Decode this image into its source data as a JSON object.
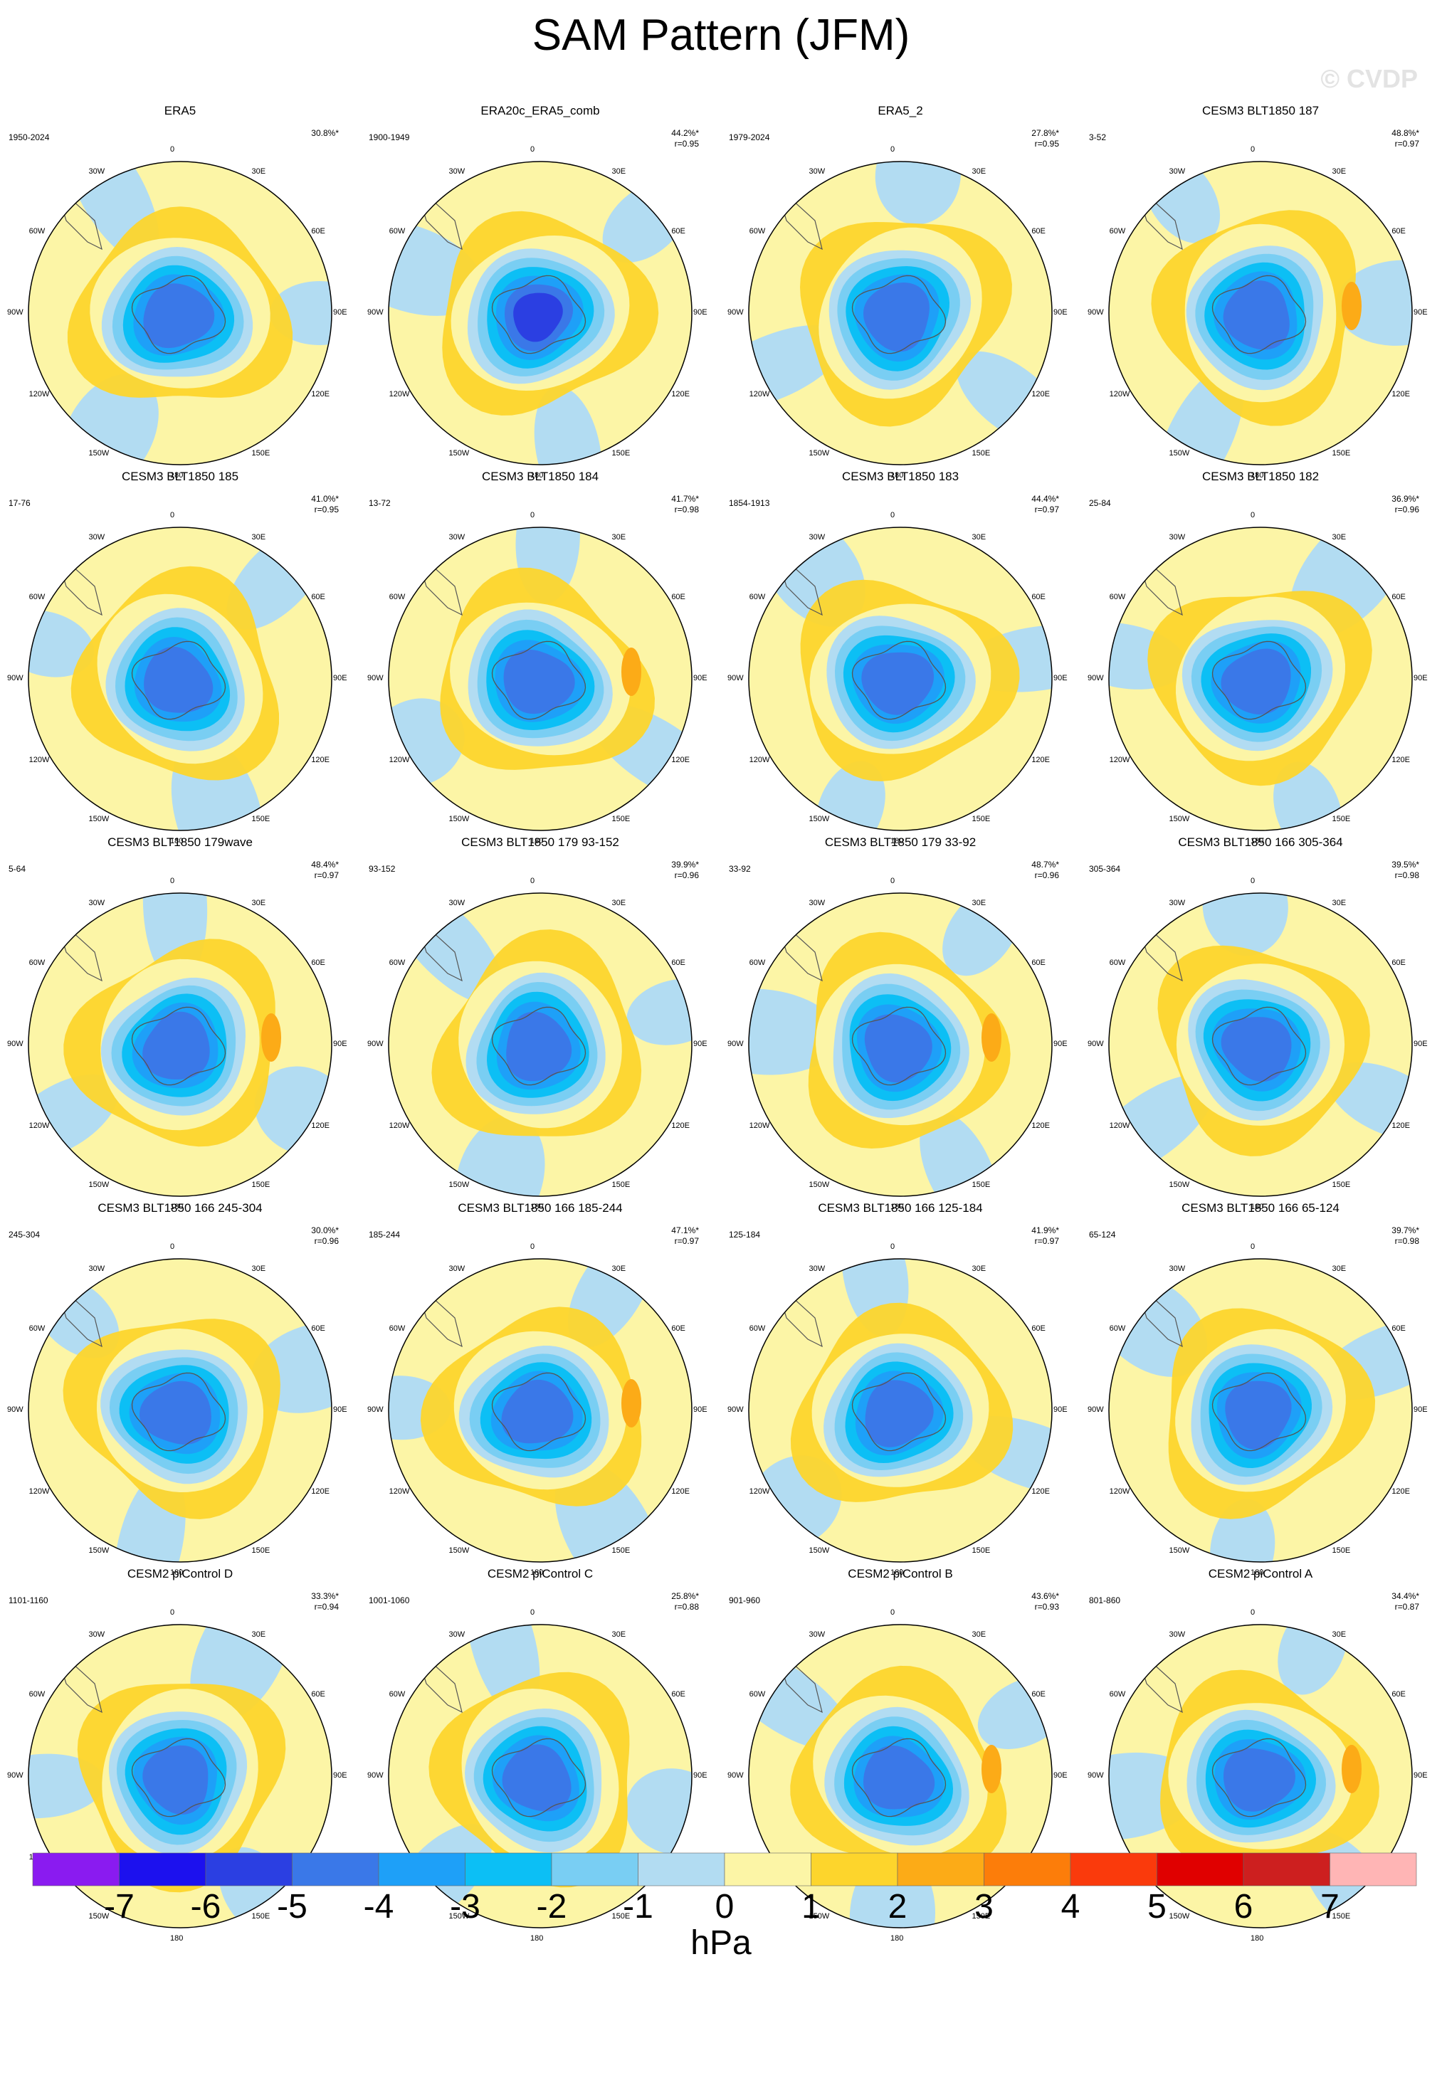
{
  "title": "SAM Pattern (JFM)",
  "watermark": "© CVDP",
  "lon_labels": [
    "0",
    "30E",
    "60E",
    "90E",
    "120E",
    "150E",
    "180",
    "150W",
    "120W",
    "90W",
    "60W",
    "30W"
  ],
  "colors": {
    "-8": "#8a1bf0",
    "-7": "#1c11ee",
    "-6": "#2b3fe2",
    "-5": "#3a78e8",
    "-4": "#1ea0f8",
    "-3": "#0cbff5",
    "-2": "#79cef3",
    "-1": "#b2dcf2",
    "0": "#fcf5a6",
    "1": "#fdd52c",
    "2": "#fcab17",
    "3": "#fc7d0a",
    "4": "#fa3a0c",
    "5": "#e00000",
    "6": "#cd1f1f",
    "7": "#ffb5b5"
  },
  "chart_data": {
    "type": "contour-map",
    "projection": "south polar stereographic",
    "colorbar": {
      "unit": "hPa",
      "ticks": [
        "-7",
        "-6",
        "-5",
        "-4",
        "-3",
        "-2",
        "-1",
        "0",
        "1",
        "2",
        "3",
        "4",
        "5",
        "6",
        "7"
      ]
    },
    "panels": [
      {
        "title": "ERA5",
        "period": "1950-2024",
        "pct": "30.8%*",
        "r": "",
        "pmin": -5,
        "pmax": 1
      },
      {
        "title": "ERA20c_ERA5_comb",
        "period": "1900-1949",
        "pct": "44.2%*",
        "r": "r=0.95",
        "pmin": -6,
        "pmax": 1
      },
      {
        "title": "ERA5_2",
        "period": "1979-2024",
        "pct": "27.8%*",
        "r": "r=0.95",
        "pmin": -5,
        "pmax": 1
      },
      {
        "title": "CESM3 BLT1850 187",
        "period": "3-52",
        "pct": "48.8%*",
        "r": "r=0.97",
        "pmin": -5,
        "pmax": 2
      },
      {
        "title": "CESM3 BLT1850 185",
        "period": "17-76",
        "pct": "41.0%*",
        "r": "r=0.95",
        "pmin": -5,
        "pmax": 1
      },
      {
        "title": "CESM3 BLT1850 184",
        "period": "13-72",
        "pct": "41.7%*",
        "r": "r=0.98",
        "pmin": -5,
        "pmax": 2
      },
      {
        "title": "CESM3 BLT1850 183",
        "period": "1854-1913",
        "pct": "44.4%*",
        "r": "r=0.97",
        "pmin": -5,
        "pmax": 1
      },
      {
        "title": "CESM3 BLT1850 182",
        "period": "25-84",
        "pct": "36.9%*",
        "r": "r=0.96",
        "pmin": -5,
        "pmax": 1
      },
      {
        "title": "CESM3 BLT1850 179wave",
        "period": "5-64",
        "pct": "48.4%*",
        "r": "r=0.97",
        "pmin": -5,
        "pmax": 2
      },
      {
        "title": "CESM3 BLT1850 179 93-152",
        "period": "93-152",
        "pct": "39.9%*",
        "r": "r=0.96",
        "pmin": -5,
        "pmax": 1
      },
      {
        "title": "CESM3 BLT1850 179 33-92",
        "period": "33-92",
        "pct": "48.7%*",
        "r": "r=0.96",
        "pmin": -5,
        "pmax": 2
      },
      {
        "title": "CESM3 BLT1850 166 305-364",
        "period": "305-364",
        "pct": "39.5%*",
        "r": "r=0.98",
        "pmin": -5,
        "pmax": 1
      },
      {
        "title": "CESM3 BLT1850 166 245-304",
        "period": "245-304",
        "pct": "30.0%*",
        "r": "r=0.96",
        "pmin": -5,
        "pmax": 1
      },
      {
        "title": "CESM3 BLT1850 166 185-244",
        "period": "185-244",
        "pct": "47.1%*",
        "r": "r=0.97",
        "pmin": -5,
        "pmax": 2
      },
      {
        "title": "CESM3 BLT1850 166 125-184",
        "period": "125-184",
        "pct": "41.9%*",
        "r": "r=0.97",
        "pmin": -5,
        "pmax": 1
      },
      {
        "title": "CESM3 BLT1850 166 65-124",
        "period": "65-124",
        "pct": "39.7%*",
        "r": "r=0.98",
        "pmin": -5,
        "pmax": 1
      },
      {
        "title": "CESM2 piControl D",
        "period": "1101-1160",
        "pct": "33.3%*",
        "r": "r=0.94",
        "pmin": -5,
        "pmax": 1
      },
      {
        "title": "CESM2 piControl C",
        "period": "1001-1060",
        "pct": "25.8%*",
        "r": "r=0.88",
        "pmin": -5,
        "pmax": 1
      },
      {
        "title": "CESM2 piControl B",
        "period": "901-960",
        "pct": "43.6%*",
        "r": "r=0.93",
        "pmin": -5,
        "pmax": 2
      },
      {
        "title": "CESM2 piControl A",
        "period": "801-860",
        "pct": "34.4%*",
        "r": "r=0.87",
        "pmin": -5,
        "pmax": 2
      }
    ]
  }
}
